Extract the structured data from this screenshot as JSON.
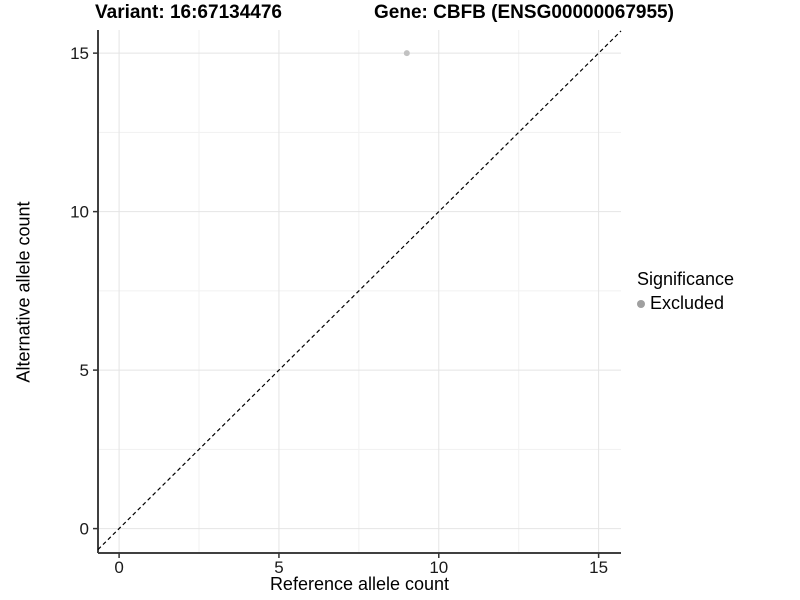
{
  "chart_data": {
    "type": "scatter",
    "title_left": "Variant: 16:67134476",
    "title_right": "Gene: CBFB (ENSG00000067955)",
    "xlabel": "Reference allele count",
    "ylabel": "Alternative allele count",
    "xlim": [
      -0.66,
      15.7
    ],
    "ylim": [
      -0.77,
      15.73
    ],
    "xticks": [
      0,
      5,
      10,
      15
    ],
    "yticks": [
      0,
      5,
      10,
      15
    ],
    "xminor": [
      2.5,
      7.5,
      12.5
    ],
    "yminor": [
      2.5,
      7.5,
      12.5
    ],
    "grid": "major+minor",
    "points": [
      {
        "x": 9,
        "y": 15,
        "series": "Excluded"
      }
    ],
    "reference_line": {
      "type": "identity",
      "slope": 1,
      "intercept": 0,
      "style": "dashed",
      "color": "#000000"
    },
    "legend": {
      "title": "Significance",
      "position": "right",
      "items": [
        {
          "label": "Excluded",
          "color": "#a0a0a0"
        }
      ]
    },
    "colors": {
      "point": "#c2c2c2",
      "grid_major": "#e4e4e4",
      "grid_minor": "#f1f1f1",
      "axis_line": "#404040",
      "tick": "#333333",
      "text": "#1a1a1a"
    }
  }
}
